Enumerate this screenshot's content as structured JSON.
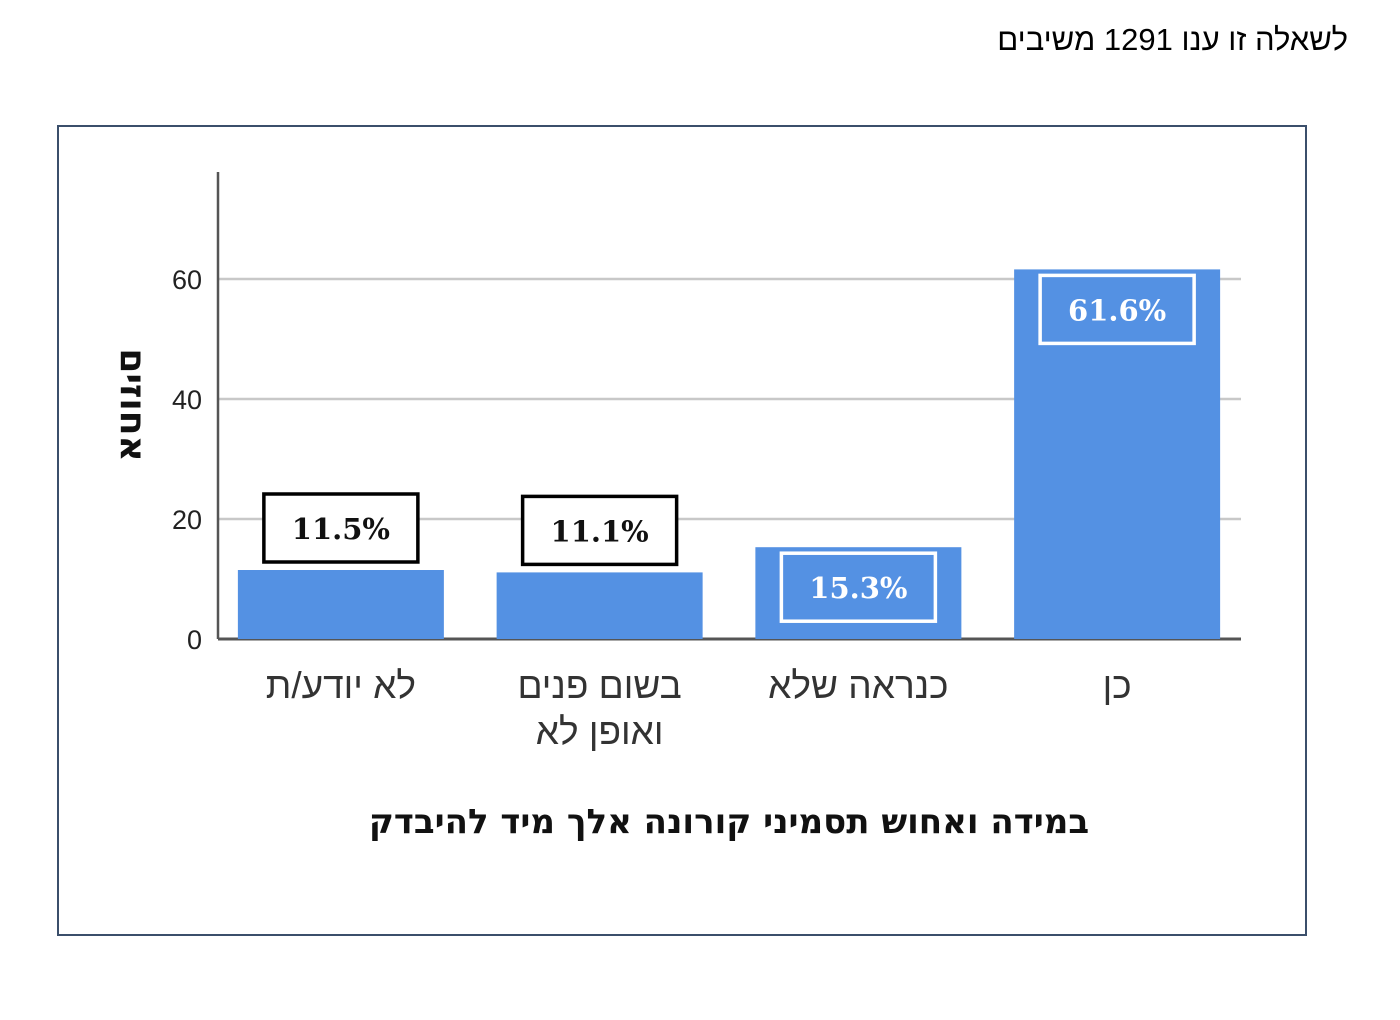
{
  "respondents_note": "לשאלה זו ענו 1291 משיבים",
  "chart_data": {
    "type": "bar",
    "categories": [
      "לא יודע/ת",
      "בשום פנים ואופן לא",
      "כנראה שלא",
      "כן"
    ],
    "category_lines": [
      [
        "לא יודע/ת"
      ],
      [
        "בשום פנים",
        "ואופן לא"
      ],
      [
        "כנראה שלא"
      ],
      [
        "כן"
      ]
    ],
    "values": [
      11.5,
      11.1,
      15.3,
      61.6
    ],
    "data_labels": [
      "11.5%",
      "11.1%",
      "15.3%",
      "61.6%"
    ],
    "ylabel": "אחוזים",
    "xlabel": "במידה ואחוש תסמיני קורונה אלך מיד להיבדק",
    "ylim": [
      0,
      75
    ],
    "yticks": [
      0,
      20,
      40,
      60
    ],
    "grid": true,
    "colors": {
      "bar": "#5491e3",
      "grid": "#c8c8c8",
      "axis": "#555555",
      "frame": "#3b4f6b"
    }
  }
}
